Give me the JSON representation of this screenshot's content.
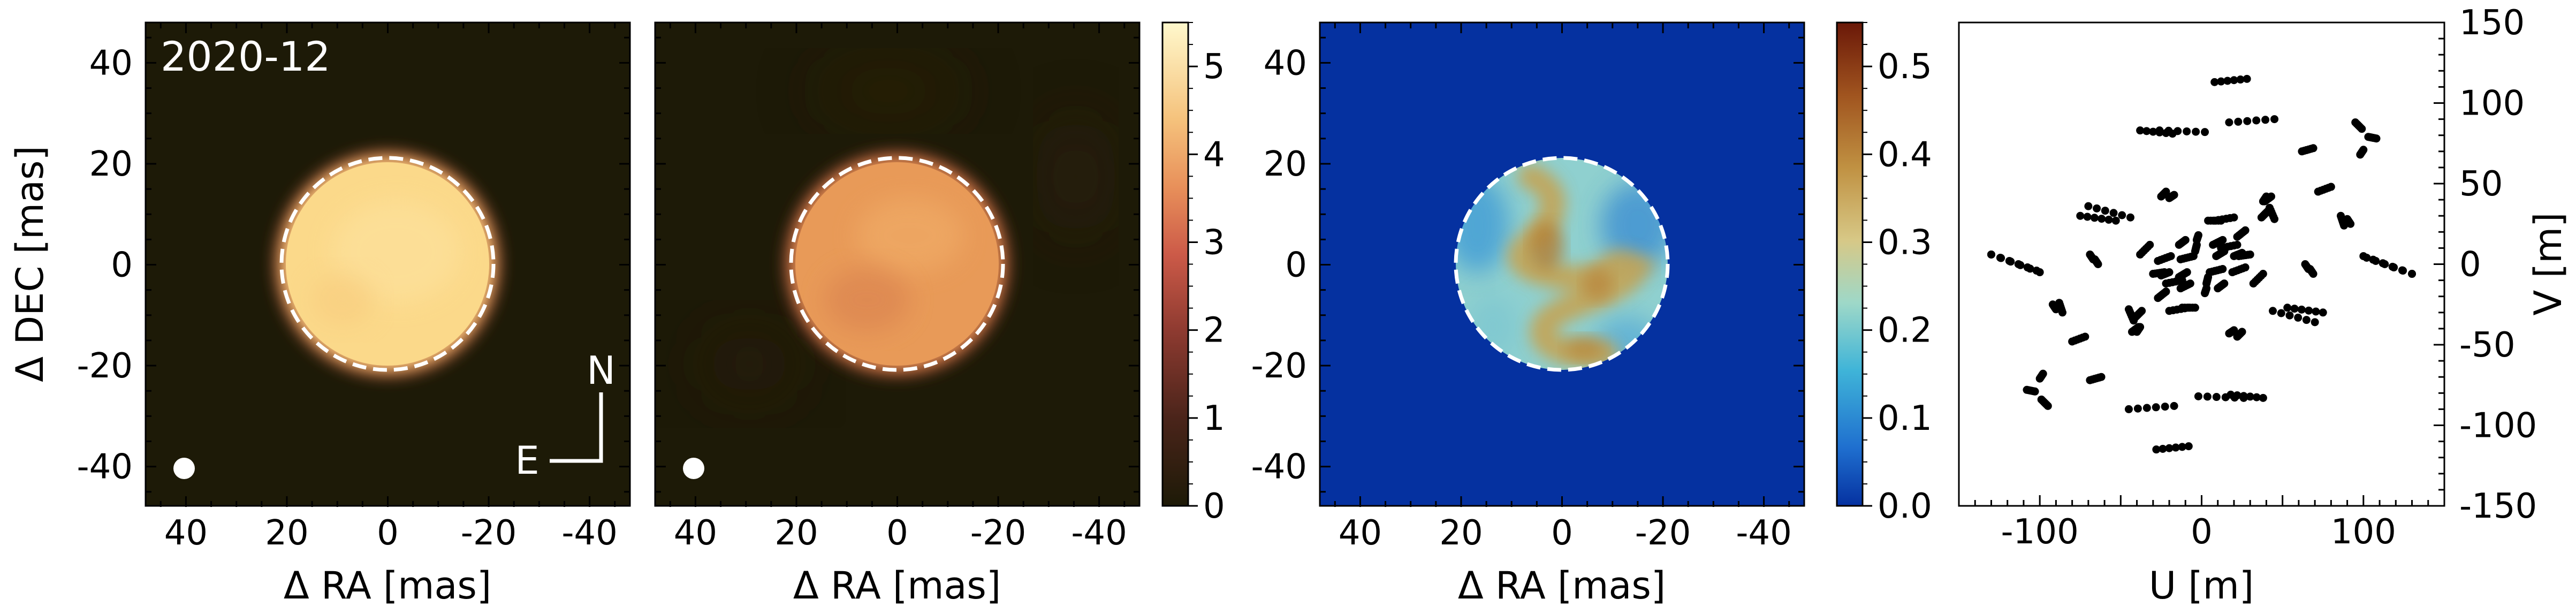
{
  "panel_label": "2020-12",
  "compass": {
    "north": "N",
    "east": "E"
  },
  "colors": {
    "image_background": "#1d1a07",
    "dashed_circle": "#ffffff",
    "uv_points": "#000000",
    "residual_background": "#0531a0"
  },
  "chart_data": [
    {
      "type": "heatmap",
      "name": "reconstructed-image",
      "xlabel": "Δ RA [mas]",
      "ylabel": "Δ DEC [mas]",
      "xlim": [
        48,
        -48
      ],
      "ylim": [
        -48,
        48
      ],
      "xticks": [
        40,
        20,
        0,
        -20,
        -40
      ],
      "yticks": [
        40,
        20,
        0,
        -20,
        -40
      ],
      "xtick_labels": [
        "40",
        "20",
        "0",
        "-20",
        "-40"
      ],
      "ytick_labels": [
        "40",
        "20",
        "0",
        "-20",
        "-40"
      ],
      "dashed_circle_radius": 21,
      "beam_center": [
        40,
        -40
      ],
      "peak_value": 4.8
    },
    {
      "type": "heatmap",
      "name": "model-image",
      "xlabel": "Δ RA [mas]",
      "ylabel": "",
      "xlim": [
        48,
        -48
      ],
      "ylim": [
        -48,
        48
      ],
      "xticks": [
        40,
        20,
        0,
        -20,
        -40
      ],
      "xtick_labels": [
        "40",
        "20",
        "0",
        "-20",
        "-40"
      ],
      "dashed_circle_radius": 21,
      "beam_center": [
        40,
        -40
      ],
      "peak_value": 3.6,
      "colorbar": {
        "range": [
          0,
          5.5
        ],
        "ticks": [
          0,
          1,
          2,
          3,
          4,
          5
        ],
        "tick_labels": [
          "0",
          "1",
          "2",
          "3",
          "4",
          "5"
        ],
        "colormap": "afmhot"
      }
    },
    {
      "type": "heatmap",
      "name": "relative-residual",
      "xlabel": "Δ RA [mas]",
      "ylabel": "",
      "xlim": [
        48,
        -48
      ],
      "ylim": [
        -48,
        48
      ],
      "xticks": [
        40,
        20,
        0,
        -20,
        -40
      ],
      "yticks": [
        40,
        20,
        0,
        -20,
        -40
      ],
      "xtick_labels": [
        "40",
        "20",
        "0",
        "-20",
        "-40"
      ],
      "ytick_labels": [
        "40",
        "20",
        "0",
        "-20",
        "-40"
      ],
      "dashed_circle_radius": 21,
      "colorbar": {
        "range": [
          0,
          0.55
        ],
        "ticks": [
          0.0,
          0.1,
          0.2,
          0.3,
          0.4,
          0.5
        ],
        "tick_labels": [
          "0.0",
          "0.1",
          "0.2",
          "0.3",
          "0.4",
          "0.5"
        ],
        "colormap": "RdYlBu_r"
      }
    },
    {
      "type": "scatter",
      "name": "uv-coverage",
      "xlabel": "U [m]",
      "ylabel": "V [m]",
      "xlim": [
        -150,
        150
      ],
      "ylim": [
        -150,
        150
      ],
      "xticks": [
        -100,
        0,
        100
      ],
      "yticks": [
        150,
        100,
        50,
        0,
        -50,
        -100,
        -150
      ],
      "xtick_labels": [
        "-100",
        "0",
        "100"
      ],
      "ytick_labels": [
        "150",
        "100",
        "50",
        "0",
        "-50",
        "-100",
        "-150"
      ],
      "tracks": [
        {
          "x1": 8,
          "y1": 113,
          "x2": 28,
          "y2": 115
        },
        {
          "x1": -38,
          "y1": 83,
          "x2": -18,
          "y2": 81
        },
        {
          "x1": -130,
          "y1": 6,
          "x2": -102,
          "y2": -4
        },
        {
          "x1": -70,
          "y1": 36,
          "x2": -44,
          "y2": 29
        },
        {
          "x1": -108,
          "y1": -78,
          "x2": -103,
          "y2": -79
        },
        {
          "x1": -98,
          "y1": -68,
          "x2": -100,
          "y2": -71
        },
        {
          "x1": -45,
          "y1": -90,
          "x2": -17,
          "y2": -88
        },
        {
          "x1": -2,
          "y1": -82,
          "x2": 26,
          "y2": -83
        },
        {
          "x1": 95,
          "y1": 88,
          "x2": 99,
          "y2": 84
        },
        {
          "x1": 62,
          "y1": 70,
          "x2": 69,
          "y2": 72
        },
        {
          "x1": 100,
          "y1": 5,
          "x2": 130,
          "y2": -6
        },
        {
          "x1": 53,
          "y1": -27,
          "x2": 75,
          "y2": -30
        },
        {
          "x1": -80,
          "y1": -48,
          "x2": -72,
          "y2": -45
        },
        {
          "x1": -88,
          "y1": -24,
          "x2": -86,
          "y2": -30
        },
        {
          "x1": -45,
          "y1": -28,
          "x2": -42,
          "y2": -35
        },
        {
          "x1": -40,
          "y1": -42,
          "x2": -38,
          "y2": -39
        },
        {
          "x1": -30,
          "y1": -6,
          "x2": -23,
          "y2": -5
        },
        {
          "x1": 5,
          "y1": -5,
          "x2": 13,
          "y2": -3
        },
        {
          "x1": 8,
          "y1": 27,
          "x2": 20,
          "y2": 29
        },
        {
          "x1": 22,
          "y1": 17,
          "x2": 27,
          "y2": 21
        },
        {
          "x1": 32,
          "y1": -12,
          "x2": 38,
          "y2": -6
        },
        {
          "x1": 37,
          "y1": 29,
          "x2": 41,
          "y2": 33
        },
        {
          "x1": 39,
          "y1": 39,
          "x2": 43,
          "y2": 42
        },
        {
          "x1": 22,
          "y1": -45,
          "x2": 25,
          "y2": -42
        },
        {
          "x1": -4,
          "y1": 8,
          "x2": -3,
          "y2": 12
        },
        {
          "x1": -3,
          "y1": 15,
          "x2": -2,
          "y2": 18
        },
        {
          "x1": -22,
          "y1": -12,
          "x2": -12,
          "y2": -10
        },
        {
          "x1": -12,
          "y1": -27,
          "x2": -4,
          "y2": -27
        },
        {
          "x1": 7,
          "y1": 12,
          "x2": 13,
          "y2": 15
        },
        {
          "x1": 9,
          "y1": 5,
          "x2": 14,
          "y2": 8
        },
        {
          "x1": 67,
          "y1": -3,
          "x2": 69,
          "y2": -6
        },
        {
          "x1": 90,
          "y1": 28,
          "x2": 92,
          "y2": 25
        },
        {
          "x1": -64,
          "y1": 0,
          "x2": -66,
          "y2": 3
        },
        {
          "x1": -20,
          "y1": 41,
          "x2": -17,
          "y2": 43
        },
        {
          "x1": -14,
          "y1": 12,
          "x2": -10,
          "y2": 15
        },
        {
          "x1": 20,
          "y1": 5,
          "x2": 25,
          "y2": 7
        },
        {
          "x1": 19,
          "y1": -5,
          "x2": 27,
          "y2": -2
        }
      ]
    }
  ]
}
